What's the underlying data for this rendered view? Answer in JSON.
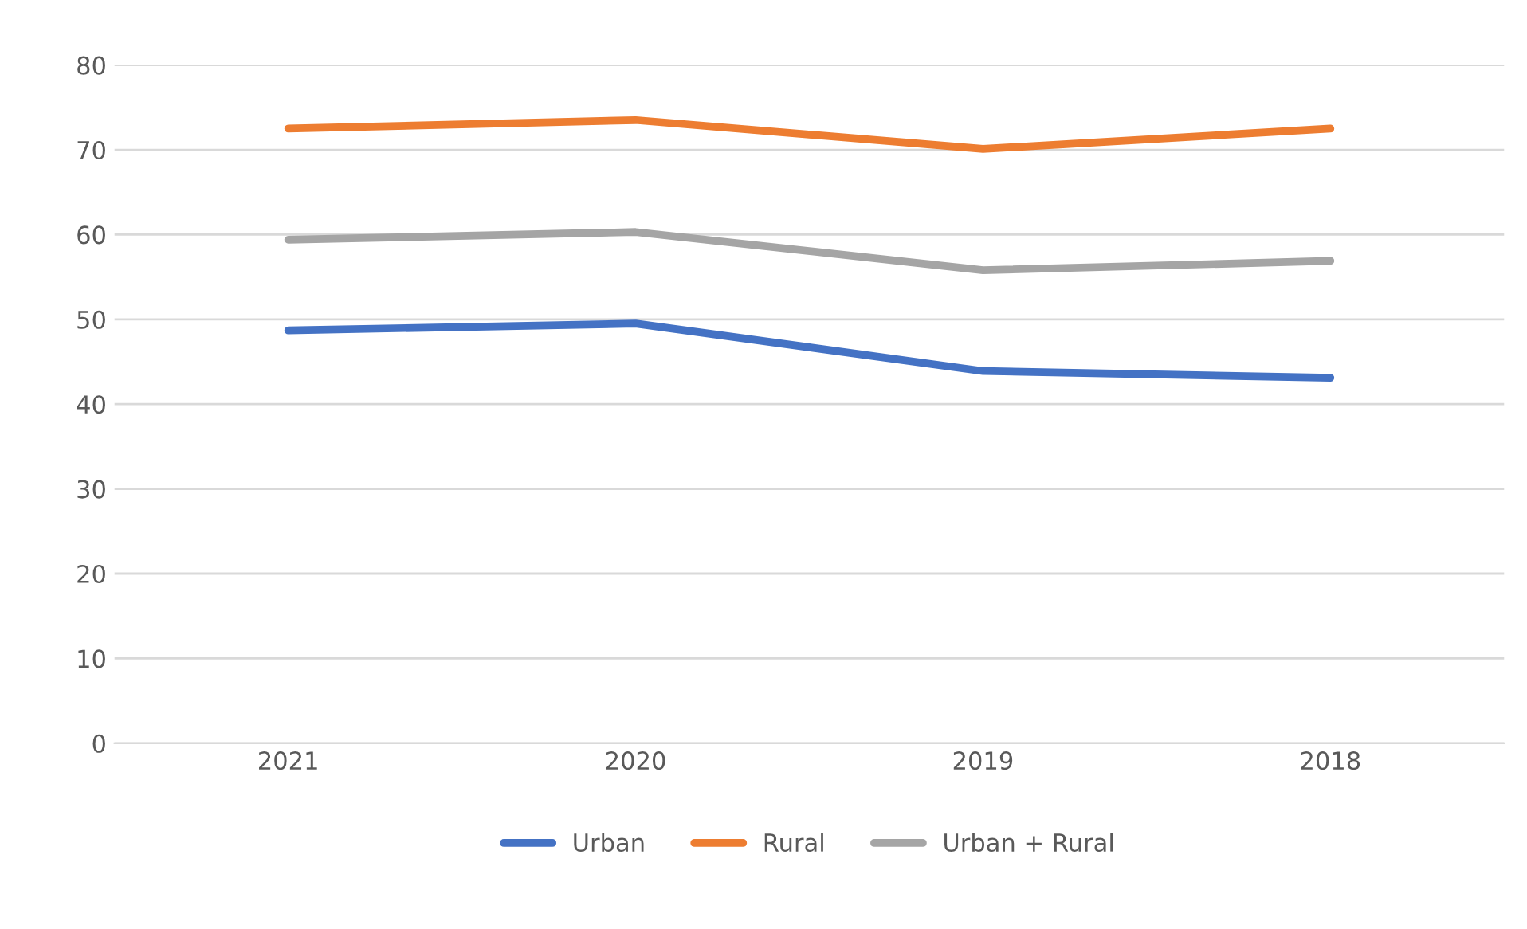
{
  "chart_data": {
    "type": "line",
    "categories": [
      "2021",
      "2020",
      "2019",
      "2018"
    ],
    "series": [
      {
        "name": "Urban",
        "color": "#4472c4",
        "values": [
          48.7,
          49.5,
          43.9,
          43.1
        ]
      },
      {
        "name": "Rural",
        "color": "#ed7d31",
        "values": [
          72.5,
          73.5,
          70.1,
          72.5
        ]
      },
      {
        "name": "Urban + Rural",
        "color": "#a5a5a5",
        "values": [
          59.4,
          60.3,
          55.8,
          56.9
        ]
      }
    ],
    "ylim": [
      0,
      80
    ],
    "yticks": [
      0,
      10,
      20,
      30,
      40,
      50,
      60,
      70,
      80
    ],
    "grid": "y",
    "legend": "bottom",
    "marker": "none",
    "line_style": "solid"
  }
}
